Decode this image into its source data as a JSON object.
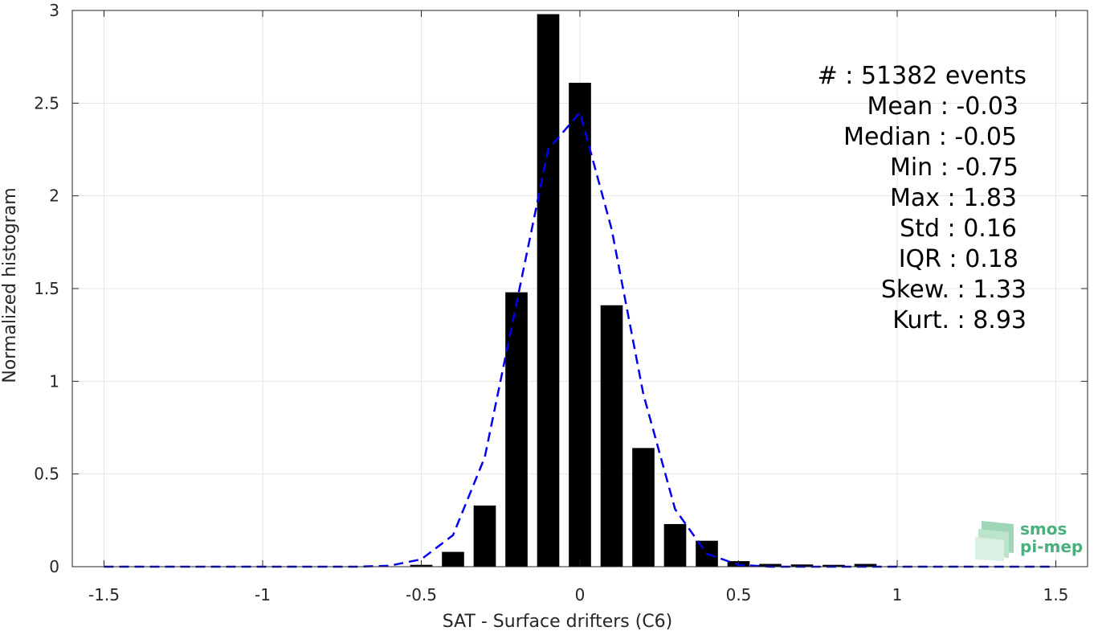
{
  "chart_data": {
    "type": "bar",
    "xlabel": "SAT - Surface drifters (C6)",
    "ylabel": "Normalized histogram",
    "xlim": [
      -1.6,
      1.6
    ],
    "ylim": [
      0,
      3
    ],
    "x_ticks": [
      -1.5,
      -1,
      -0.5,
      0,
      0.5,
      1,
      1.5
    ],
    "x_tick_labels": [
      "-1.5",
      "-1",
      "-0.5",
      "0",
      "0.5",
      "1",
      "1.5"
    ],
    "y_ticks": [
      0,
      0.5,
      1,
      1.5,
      2,
      2.5,
      3
    ],
    "y_tick_labels": [
      "0",
      "0.5",
      "1",
      "1.5",
      "2",
      "2.5",
      "3"
    ],
    "grid": true,
    "bar_width": 0.07,
    "bars": {
      "x": [
        -0.5,
        -0.4,
        -0.3,
        -0.2,
        -0.1,
        0.0,
        0.1,
        0.2,
        0.3,
        0.4,
        0.5,
        0.6,
        0.7,
        0.8,
        0.9
      ],
      "values": [
        0.01,
        0.08,
        0.33,
        1.48,
        2.98,
        2.61,
        1.41,
        0.64,
        0.23,
        0.14,
        0.03,
        0.015,
        0.012,
        0.01,
        0.015
      ],
      "color": "#000000"
    },
    "fit_curve": {
      "style": "dashed",
      "color": "#0000ee",
      "x": [
        -1.5,
        -1.4,
        -1.3,
        -1.2,
        -1.1,
        -1.0,
        -0.9,
        -0.8,
        -0.7,
        -0.6,
        -0.5,
        -0.4,
        -0.3,
        -0.2,
        -0.1,
        0.0,
        0.1,
        0.2,
        0.3,
        0.4,
        0.5,
        0.6,
        0.7,
        0.8,
        0.9,
        1.0,
        1.1,
        1.2,
        1.3,
        1.4,
        1.5
      ],
      "y": [
        0,
        0,
        0,
        0,
        0,
        0,
        0,
        0,
        0,
        0.005,
        0.04,
        0.17,
        0.59,
        1.42,
        2.25,
        2.45,
        1.82,
        0.93,
        0.31,
        0.07,
        0.01,
        0,
        0,
        0,
        0,
        0,
        0,
        0,
        0,
        0,
        0
      ]
    },
    "stats": [
      "#  : 51382 events",
      "Mean : -0.03",
      "Median : -0.05",
      "Min : -0.75",
      "Max : 1.83",
      "Std : 0.16",
      "IQR : 0.18",
      "Skew. : 1.33",
      "Kurt. : 8.93"
    ]
  },
  "logo": {
    "line1": "smos",
    "line2": "pi-mep",
    "color": "#4caf7d"
  }
}
